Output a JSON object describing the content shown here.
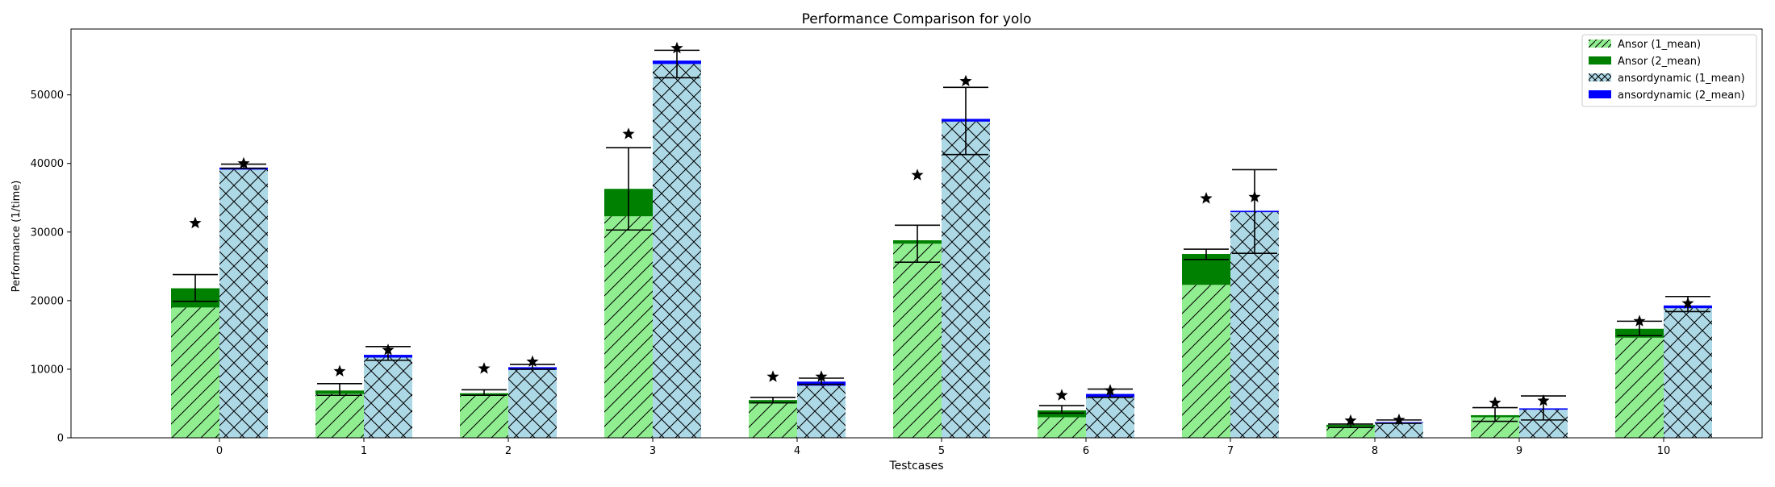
{
  "chart_data": {
    "type": "bar",
    "title": "Performance Comparison for yolo",
    "xlabel": "Testcases",
    "ylabel": "Performance (1/time)",
    "categories": [
      "0",
      "1",
      "2",
      "3",
      "4",
      "5",
      "6",
      "7",
      "8",
      "9",
      "10"
    ],
    "ylim": [
      0,
      59600
    ],
    "yticks": [
      0,
      10000,
      20000,
      30000,
      40000,
      50000
    ],
    "ytick_labels": [
      "0",
      "10000",
      "20000",
      "30000",
      "40000",
      "50000"
    ],
    "grid": false,
    "legend_position": "top-right",
    "series": [
      {
        "name": "Ansor (1_mean)",
        "stack_group": "Ansor",
        "pattern": "diagonal-hatch",
        "color": "#90ee90",
        "values": [
          19000,
          6400,
          6200,
          32300,
          5000,
          28300,
          3000,
          22300,
          1600,
          3000,
          14600
        ],
        "error": [
          [
            19900,
            23800
          ],
          [
            6200,
            7900
          ],
          [
            6200,
            7000
          ],
          [
            30300,
            42300
          ],
          [
            5100,
            5900
          ],
          [
            25600,
            31000
          ],
          [
            3600,
            4700
          ],
          [
            26000,
            27500
          ],
          [
            1500,
            2000
          ],
          [
            2400,
            4400
          ],
          [
            14900,
            17000
          ]
        ],
        "best": [
          31300,
          9700,
          10100,
          44300,
          8900,
          38300,
          6200,
          34900,
          2500,
          5100,
          17000
        ]
      },
      {
        "name": "Ansor (2_mean)",
        "stack_group": "Ansor",
        "pattern": "solid",
        "color": "#008000",
        "values": [
          2800,
          500,
          300,
          4000,
          500,
          500,
          1000,
          4500,
          300,
          300,
          1300
        ]
      },
      {
        "name": "ansordynamic (1_mean)",
        "stack_group": "ansordynamic",
        "pattern": "cross-hatch",
        "color": "#add8e6",
        "values": [
          39100,
          11700,
          9900,
          54500,
          7600,
          46100,
          5900,
          32900,
          2200,
          4100,
          18900
        ],
        "error": [
          [
            39300,
            39900
          ],
          [
            11300,
            13300
          ],
          [
            10000,
            10700
          ],
          [
            52500,
            56500
          ],
          [
            7800,
            8700
          ],
          [
            41300,
            51100
          ],
          [
            5900,
            7100
          ],
          [
            26900,
            39100
          ],
          [
            2100,
            2600
          ],
          [
            2600,
            6100
          ],
          [
            18400,
            20600
          ]
        ],
        "best": [
          40000,
          12800,
          11100,
          56800,
          8900,
          52000,
          6900,
          35100,
          2600,
          5400,
          19600
        ]
      },
      {
        "name": "ansordynamic (2_mean)",
        "stack_group": "ansordynamic",
        "pattern": "solid",
        "color": "#0000ff",
        "values": [
          300,
          400,
          400,
          500,
          600,
          400,
          500,
          200,
          100,
          200,
          400
        ]
      }
    ]
  }
}
